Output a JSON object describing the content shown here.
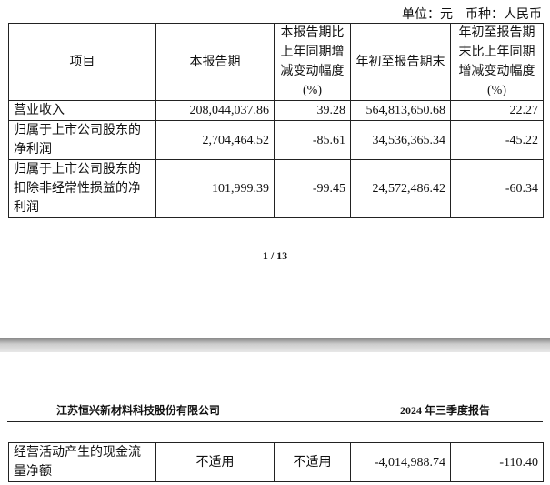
{
  "unit_line": "单位：元　币种：人民币",
  "table1": {
    "headers": [
      "项目",
      "本报告期",
      "本报告期比上年同期增减变动幅度(%)",
      "年初至报告期末",
      "年初至报告期末比上年同期增减变动幅度(%)"
    ],
    "rows": [
      [
        "营业收入",
        "208,044,037.86",
        "39.28",
        "564,813,650.68",
        "22.27"
      ],
      [
        "归属于上市公司股东的净利润",
        "2,704,464.52",
        "-85.61",
        "34,536,365.34",
        "-45.22"
      ],
      [
        "归属于上市公司股东的扣除非经常性损益的净利润",
        "101,999.39",
        "-99.45",
        "24,572,486.42",
        "-60.34"
      ]
    ]
  },
  "page_number": "1 / 13",
  "page_header": {
    "company": "江苏恒兴新材料科技股份有限公司",
    "report": "2024 年三季度报告"
  },
  "table2": {
    "rows": [
      [
        "经营活动产生的现金流量净额",
        "不适用",
        "不适用",
        "-4,014,988.74",
        "-110.40"
      ]
    ]
  }
}
